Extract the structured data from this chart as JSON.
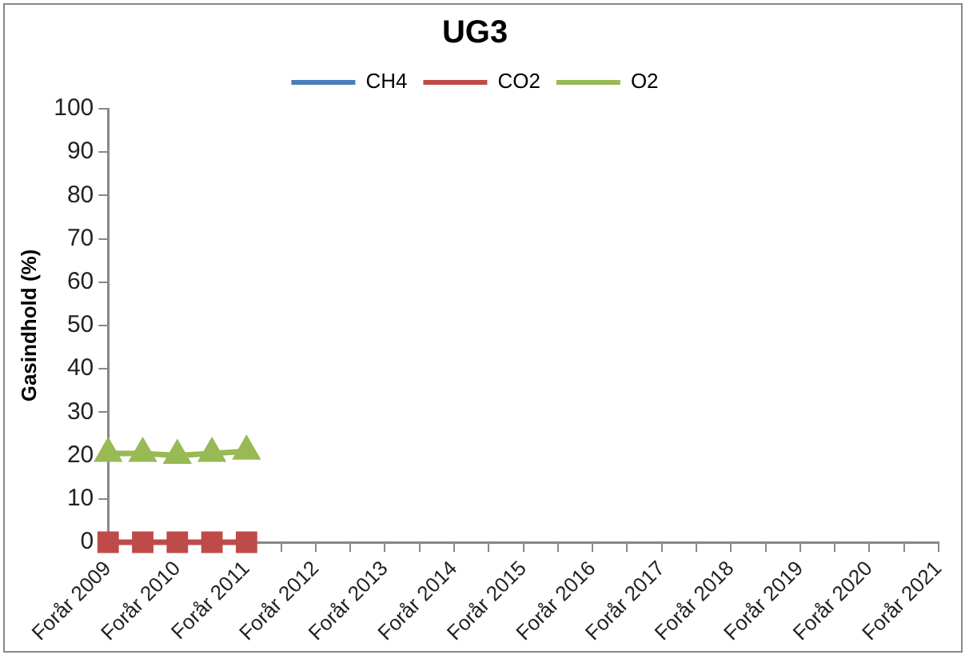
{
  "chart_data": {
    "type": "line",
    "title": "UG3",
    "ylabel": "Gasindhold (%)",
    "categories": [
      "Forår 2009",
      null,
      "Forår 2010",
      null,
      "Forår 2011",
      null,
      "Forår 2012",
      null,
      "Forår 2013",
      null,
      "Forår 2014",
      null,
      "Forår 2015",
      null,
      "Forår 2016",
      null,
      "Forår 2017",
      null,
      "Forår 2018",
      null,
      "Forår 2019",
      null,
      "Forår 2020",
      null,
      "Forår 2021"
    ],
    "series": [
      {
        "name": "CH4",
        "color": "#4a7ebb",
        "marker": "diamond",
        "values": [
          null,
          null,
          null,
          null,
          null,
          null,
          null,
          null,
          null,
          null,
          null,
          null,
          null,
          null,
          null,
          null,
          null,
          null,
          null,
          null,
          null,
          null,
          null,
          null,
          null
        ]
      },
      {
        "name": "CO2",
        "color": "#be4b48",
        "marker": "square",
        "values": [
          0,
          0,
          0,
          0,
          0,
          null,
          null,
          null,
          null,
          null,
          null,
          null,
          null,
          null,
          null,
          null,
          null,
          null,
          null,
          null,
          null,
          null,
          null,
          null,
          null
        ]
      },
      {
        "name": "O2",
        "color": "#98b954",
        "marker": "triangle",
        "values": [
          20.5,
          20.5,
          20,
          20.5,
          21,
          null,
          null,
          null,
          null,
          null,
          null,
          null,
          null,
          null,
          null,
          null,
          null,
          null,
          null,
          null,
          null,
          null,
          null,
          null,
          null
        ]
      }
    ],
    "ylim": [
      0,
      100
    ],
    "yticks": [
      0,
      10,
      20,
      30,
      40,
      50,
      60,
      70,
      80,
      90,
      100
    ],
    "grid": false,
    "legend": "top"
  }
}
